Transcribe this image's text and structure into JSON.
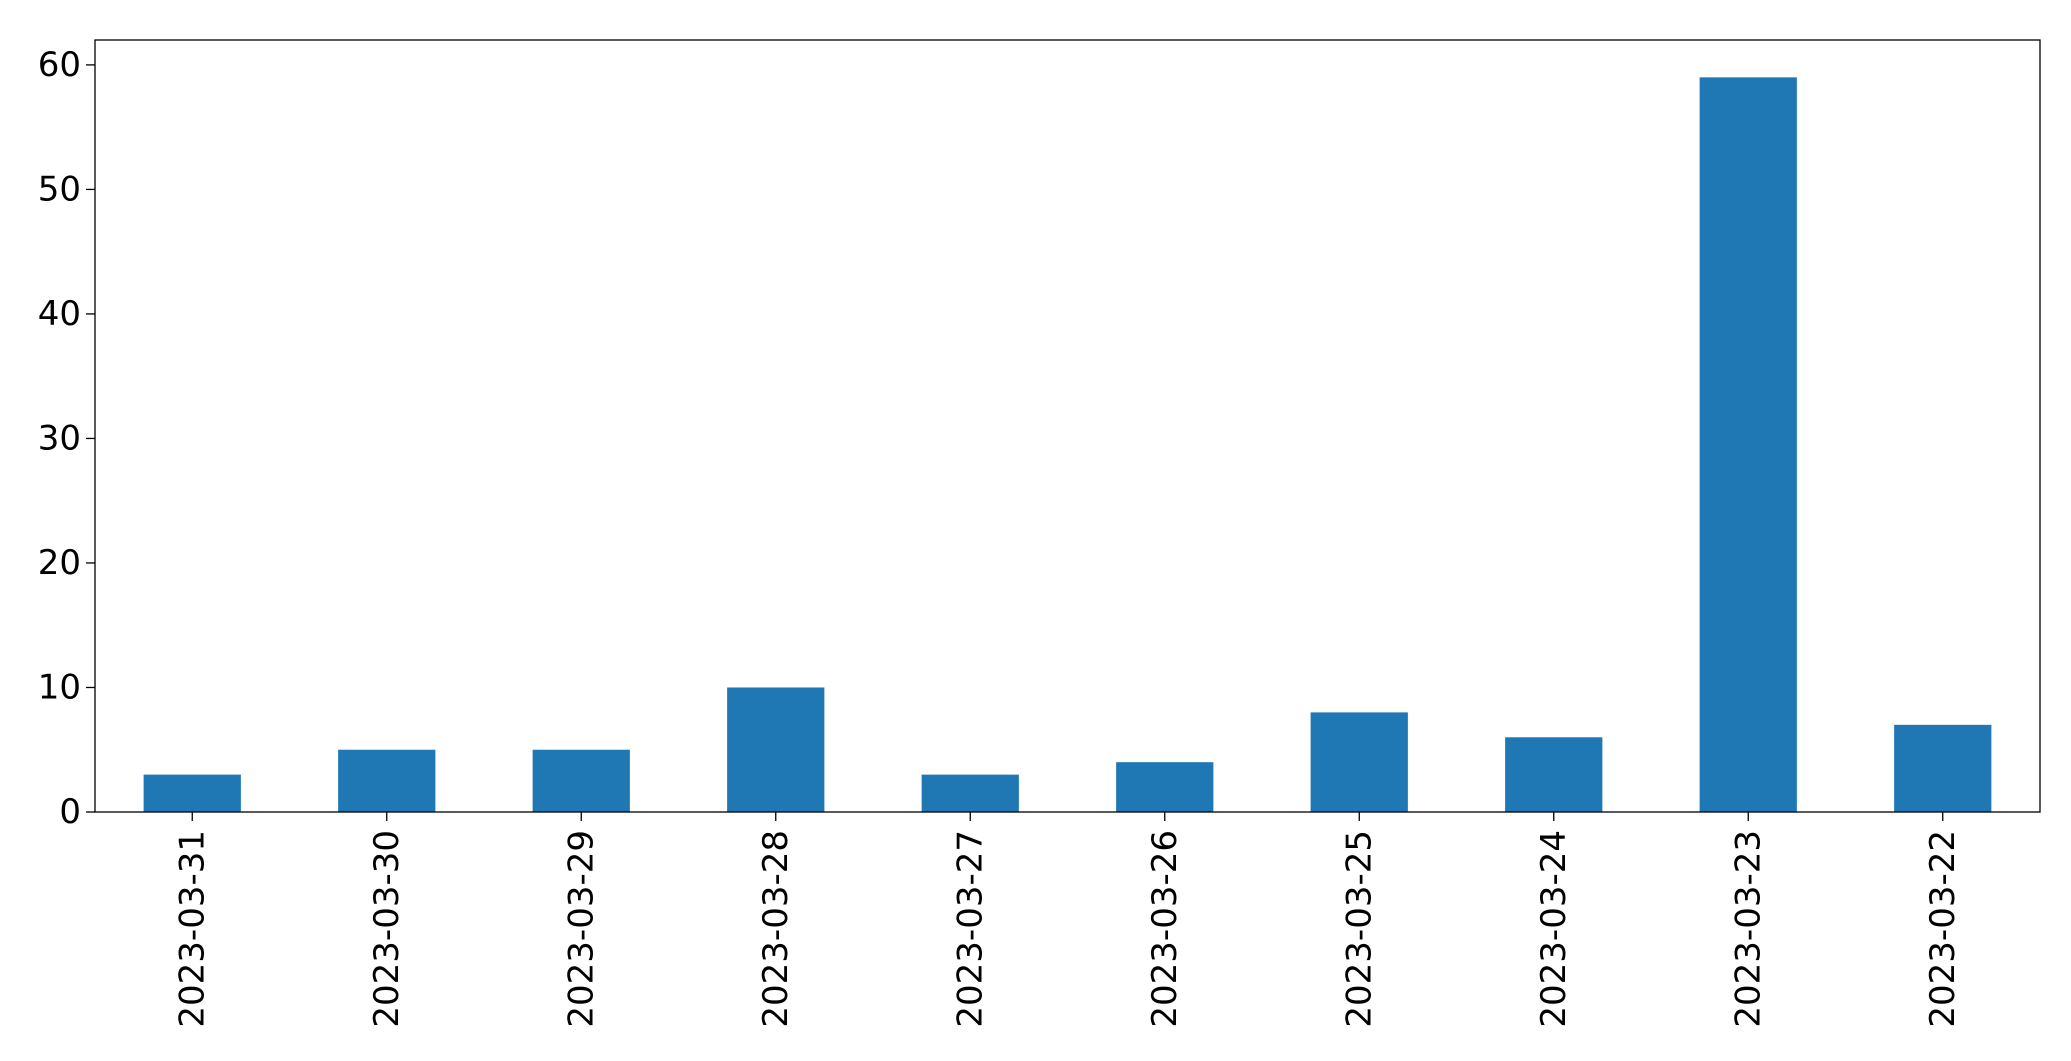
{
  "chart_data": {
    "type": "bar",
    "title": "",
    "xlabel": "",
    "ylabel": "",
    "categories": [
      "2023-03-31",
      "2023-03-30",
      "2023-03-29",
      "2023-03-28",
      "2023-03-27",
      "2023-03-26",
      "2023-03-25",
      "2023-03-24",
      "2023-03-23",
      "2023-03-22"
    ],
    "values": [
      3,
      5,
      5,
      10,
      3,
      4,
      8,
      6,
      59,
      7
    ],
    "ylim": [
      0,
      62
    ],
    "yticks": [
      "0",
      "10",
      "20",
      "30",
      "40",
      "50",
      "60"
    ],
    "grid": false,
    "legend": "none",
    "bar_color": "#1f77b4"
  }
}
